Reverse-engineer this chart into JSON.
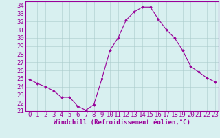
{
  "hours": [
    0,
    1,
    2,
    3,
    4,
    5,
    6,
    7,
    8,
    9,
    10,
    11,
    12,
    13,
    14,
    15,
    16,
    17,
    18,
    19,
    20,
    21,
    22,
    23
  ],
  "values": [
    24.9,
    24.4,
    24.0,
    23.5,
    22.7,
    22.7,
    21.6,
    21.1,
    21.8,
    25.0,
    28.5,
    30.0,
    32.2,
    33.2,
    33.8,
    33.8,
    32.3,
    31.0,
    30.0,
    28.5,
    26.5,
    25.8,
    25.1,
    24.6
  ],
  "line_color": "#990099",
  "marker": "D",
  "marker_size": 1.8,
  "bg_color": "#d8f0f0",
  "grid_color": "#aacccc",
  "xlabel": "Windchill (Refroidissement éolien,°C)",
  "ylim_min": 21,
  "ylim_max": 34.5,
  "yticks": [
    21,
    22,
    23,
    24,
    25,
    26,
    27,
    28,
    29,
    30,
    31,
    32,
    33,
    34
  ],
  "tick_color": "#990099",
  "border_color": "#990099",
  "font_size": 6.5
}
